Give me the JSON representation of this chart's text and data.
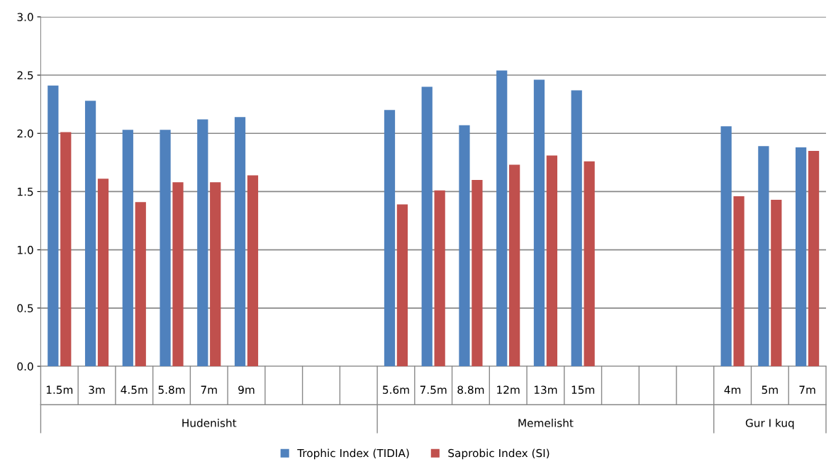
{
  "chart_data": {
    "type": "bar",
    "categories": [
      "1.5m",
      "3m",
      "4.5m",
      "5.8m",
      "7m",
      "9m",
      null,
      null,
      null,
      "5.6m",
      "7.5m",
      "8.8m",
      "12m",
      "13m",
      "15m",
      null,
      null,
      null,
      "4m",
      "5m",
      "7m"
    ],
    "series": [
      {
        "name": "Trophic Index (TIDIA)",
        "color": "#4f81bd",
        "values": [
          2.41,
          2.28,
          2.03,
          2.03,
          2.12,
          2.14,
          null,
          null,
          null,
          2.2,
          2.4,
          2.07,
          2.54,
          2.46,
          2.37,
          null,
          null,
          null,
          2.06,
          1.89,
          1.88
        ]
      },
      {
        "name": "Saprobic Index (SI)",
        "color": "#c0504d",
        "values": [
          2.01,
          1.61,
          1.41,
          1.58,
          1.58,
          1.64,
          null,
          null,
          null,
          1.39,
          1.51,
          1.6,
          1.73,
          1.81,
          1.76,
          null,
          null,
          null,
          1.46,
          1.43,
          1.85
        ]
      }
    ],
    "annotations": [
      "Hudenisht",
      "Memelisht",
      "Gur I kuq"
    ],
    "ylim": [
      0,
      3
    ],
    "yticks": [
      {
        "value": 0,
        "label": "0.0"
      },
      {
        "value": 0.5,
        "label": "0.5"
      },
      {
        "value": 1,
        "label": "1.0"
      },
      {
        "value": 1.5,
        "label": "1.5"
      },
      {
        "value": 2,
        "label": "2.0"
      },
      {
        "value": 2.5,
        "label": "2.5"
      },
      {
        "value": 3,
        "label": "3.0"
      }
    ],
    "grid": "y",
    "legend": "bottom"
  }
}
